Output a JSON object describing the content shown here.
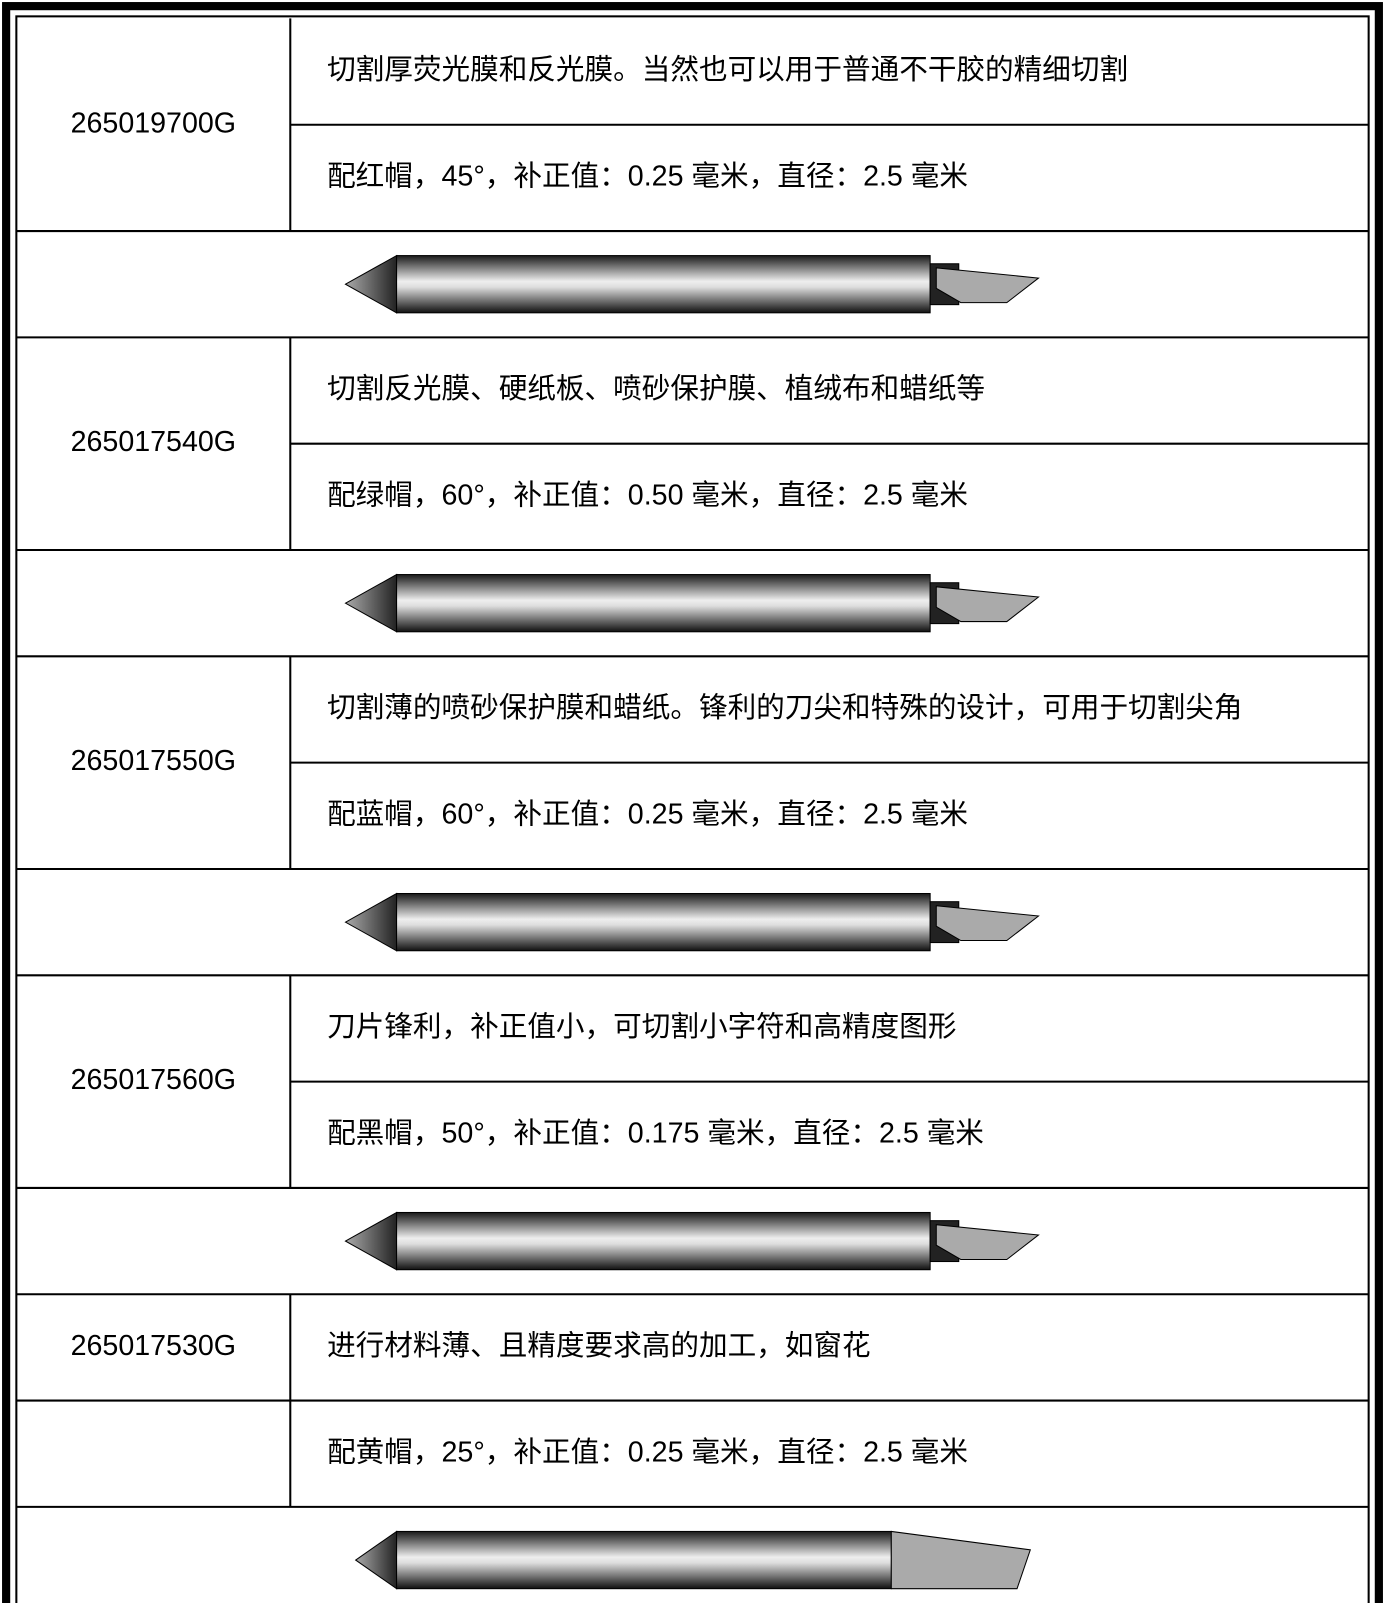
{
  "blades": [
    {
      "code": "265019700G",
      "description": "切割厚荧光膜和反光膜。当然也可以用于普通不干胶的精细切割",
      "spec": "配红帽，45°，补正值：0.25 毫米，直径：2.5 毫米"
    },
    {
      "code": "265017540G",
      "description": "切割反光膜、硬纸板、喷砂保护膜、植绒布和蜡纸等",
      "spec": "配绿帽，60°，补正值：0.50 毫米，直径：2.5 毫米"
    },
    {
      "code": "265017550G",
      "description": "切割薄的喷砂保护膜和蜡纸。锋利的刀尖和特殊的设计，可用于切割尖角",
      "spec": "配蓝帽，60°，补正值：0.25 毫米，直径：2.5 毫米"
    },
    {
      "code": "265017560G",
      "description": "刀片锋利，补正值小，可切割小字符和高精度图形",
      "spec": "配黑帽，50°，补正值：0.175 毫米，直径：2.5 毫米"
    },
    {
      "code": "265017530G",
      "description": "进行材料薄、且精度要求高的加工，如窗花",
      "spec": "配黄帽，25°，补正值：0.25 毫米，直径：2.5 毫米"
    }
  ]
}
